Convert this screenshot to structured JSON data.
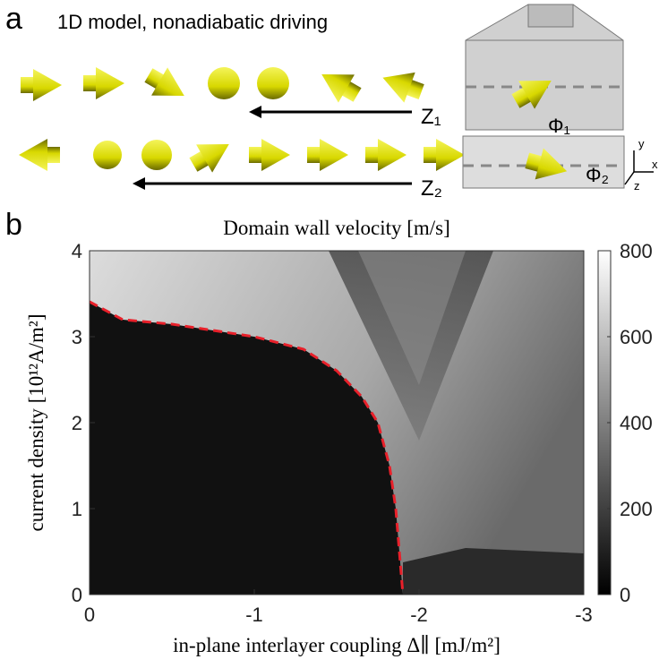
{
  "panel_a": {
    "label": "a",
    "title": "1D model, nonadiabatic driving",
    "z1": "Z₁",
    "z2": "Z₂",
    "phi1": "Φ₁",
    "phi2": "Φ₂",
    "axis_x": "x",
    "axis_y": "y",
    "axis_z": "z"
  },
  "chart_data": {
    "type": "heatmap",
    "panel_label": "b",
    "title": "Domain wall velocity [m/s]",
    "xlabel": "in-plane interlayer coupling Δ∥ [mJ/m²]",
    "ylabel": "current density [10¹²A/m²]",
    "xlim": [
      0,
      -3
    ],
    "xticks": [
      0,
      -1,
      -2,
      -3
    ],
    "ylim": [
      0,
      4
    ],
    "yticks": [
      0,
      1,
      2,
      3,
      4
    ],
    "colorbar_lim": [
      0,
      800
    ],
    "colorbar_ticks": [
      0,
      200,
      400,
      600,
      800
    ]
  }
}
